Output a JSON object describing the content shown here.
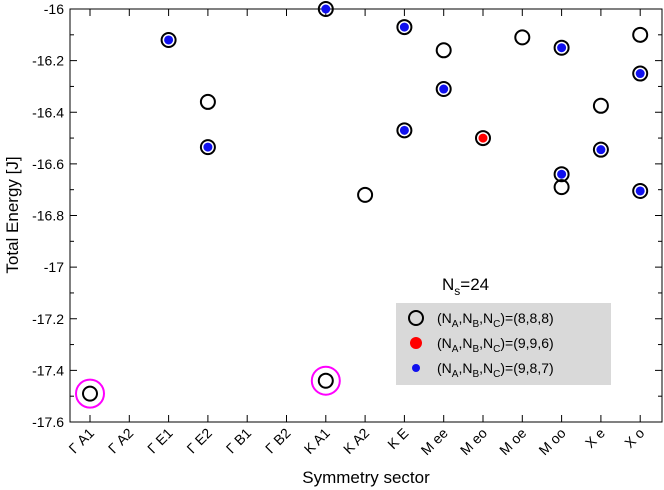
{
  "chart_data": {
    "type": "scatter",
    "xlabel": "Symmetry sector",
    "ylabel": "Total Energy [J]",
    "ylim": [
      -17.6,
      -16.0
    ],
    "grid": false,
    "categories": [
      "Γ A1",
      "Γ A2",
      "Γ E1",
      "Γ E2",
      "Γ B1",
      "Γ B2",
      "K A1",
      "K A2",
      "K E",
      "M ee",
      "M eo",
      "M oe",
      "M oo",
      "X e",
      "X o"
    ],
    "y_ticks": [
      -16,
      -16.2,
      -16.4,
      -16.6,
      -16.8,
      -17,
      -17.2,
      -17.4,
      -17.6
    ],
    "y_tick_labels": [
      "-16",
      "-16.2",
      "-16.4",
      "-16.6",
      "-16.8",
      "-17",
      "-17.2",
      "-17.4",
      "-17.6"
    ],
    "annotation": {
      "main": "N",
      "sub": "s",
      "suffix": "=24"
    },
    "legend": {
      "position": "lower-right",
      "entries": [
        {
          "key": "888",
          "label": "(N_A,N_B,N_C)=(8,8,8)",
          "text": [
            "(N",
            "A",
            ",N",
            "B",
            ",N",
            "C",
            ")=(8,8,8)"
          ]
        },
        {
          "key": "996",
          "label": "(N_A,N_B,N_C)=(9,9,6)",
          "text": [
            "(N",
            "A",
            ",N",
            "B",
            ",N",
            "C",
            ")=(9,9,6)"
          ]
        },
        {
          "key": "987",
          "label": "(N_A,N_B,N_C)=(9,8,7)",
          "text": [
            "(N",
            "A",
            ",N",
            "B",
            ",N",
            "C",
            ")=(9,8,7)"
          ]
        }
      ]
    },
    "series": [
      {
        "name": "(8,8,8)",
        "marker": "open-circle",
        "color": "#000000",
        "points": [
          {
            "cat": 0,
            "y": -17.49
          },
          {
            "cat": 2,
            "y": -16.12
          },
          {
            "cat": 3,
            "y": -16.36
          },
          {
            "cat": 3,
            "y": -16.535
          },
          {
            "cat": 6,
            "y": -16.0
          },
          {
            "cat": 6,
            "y": -17.44
          },
          {
            "cat": 7,
            "y": -16.72
          },
          {
            "cat": 8,
            "y": -16.07
          },
          {
            "cat": 8,
            "y": -16.47
          },
          {
            "cat": 9,
            "y": -16.16
          },
          {
            "cat": 9,
            "y": -16.31
          },
          {
            "cat": 10,
            "y": -16.5
          },
          {
            "cat": 11,
            "y": -16.11
          },
          {
            "cat": 12,
            "y": -16.15
          },
          {
            "cat": 12,
            "y": -16.64
          },
          {
            "cat": 12,
            "y": -16.69
          },
          {
            "cat": 13,
            "y": -16.375
          },
          {
            "cat": 13,
            "y": -16.545
          },
          {
            "cat": 14,
            "y": -16.1
          },
          {
            "cat": 14,
            "y": -16.25
          },
          {
            "cat": 14,
            "y": -16.705
          }
        ]
      },
      {
        "name": "(9,9,6)",
        "marker": "filled-circle",
        "color": "#ff0000",
        "points": [
          {
            "cat": 10,
            "y": -16.5
          }
        ]
      },
      {
        "name": "(9,8,7)",
        "marker": "filled-circle",
        "color": "#1010ee",
        "points": [
          {
            "cat": 2,
            "y": -16.12
          },
          {
            "cat": 3,
            "y": -16.535
          },
          {
            "cat": 6,
            "y": -16.0
          },
          {
            "cat": 8,
            "y": -16.07
          },
          {
            "cat": 8,
            "y": -16.47
          },
          {
            "cat": 9,
            "y": -16.31
          },
          {
            "cat": 12,
            "y": -16.15
          },
          {
            "cat": 12,
            "y": -16.64
          },
          {
            "cat": 13,
            "y": -16.545
          },
          {
            "cat": 14,
            "y": -16.25
          },
          {
            "cat": 14,
            "y": -16.705
          }
        ]
      }
    ],
    "highlighted": [
      {
        "cat": 0,
        "y": -17.49,
        "color": "#ff00ff"
      },
      {
        "cat": 6,
        "y": -17.44,
        "color": "#ff00ff"
      }
    ]
  }
}
